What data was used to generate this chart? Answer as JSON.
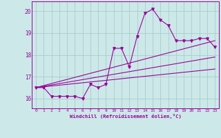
{
  "background_color": "#cce8e8",
  "line_color": "#990099",
  "grid_color": "#aacccc",
  "xlabel": "Windchill (Refroidissement éolien,°C)",
  "x_ticks": [
    0,
    1,
    2,
    3,
    4,
    5,
    6,
    7,
    8,
    9,
    10,
    11,
    12,
    13,
    14,
    15,
    16,
    17,
    18,
    19,
    20,
    21,
    22,
    23
  ],
  "y_ticks": [
    16,
    17,
    18,
    19,
    20
  ],
  "xlim": [
    -0.5,
    23.5
  ],
  "ylim": [
    15.55,
    20.45
  ],
  "curve_x": [
    0,
    1,
    2,
    3,
    4,
    5,
    6,
    7,
    8,
    9,
    10,
    11,
    12,
    13,
    14,
    15,
    16,
    17,
    18,
    19,
    20,
    21,
    22,
    23
  ],
  "curve_y": [
    16.5,
    16.5,
    16.1,
    16.1,
    16.1,
    16.1,
    16.0,
    16.65,
    16.5,
    16.65,
    18.3,
    18.3,
    17.45,
    18.85,
    19.9,
    20.1,
    19.6,
    19.35,
    18.65,
    18.65,
    18.65,
    18.75,
    18.75,
    18.35
  ],
  "line1_x": [
    0,
    23
  ],
  "line1_y": [
    16.5,
    17.35
  ],
  "line2_x": [
    0,
    23
  ],
  "line2_y": [
    16.5,
    18.65
  ],
  "line3_x": [
    0,
    23
  ],
  "line3_y": [
    16.5,
    17.9
  ]
}
